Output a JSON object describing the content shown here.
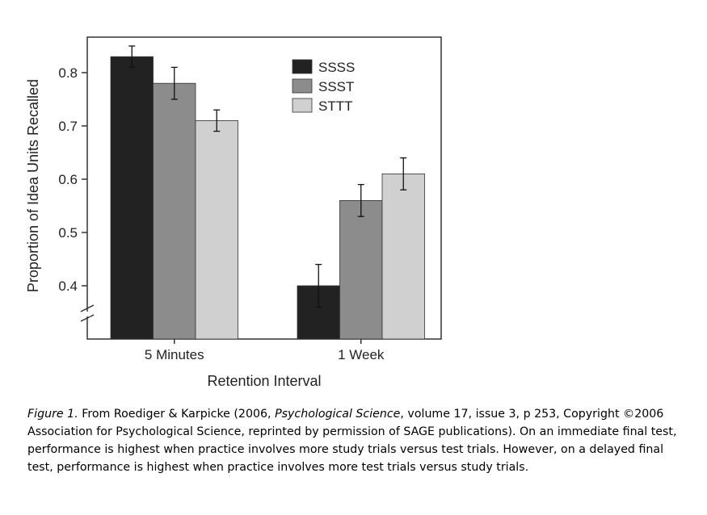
{
  "chart_data": {
    "type": "bar",
    "categories": [
      "5 Minutes",
      "1 Week"
    ],
    "series": [
      {
        "name": "SSSS",
        "color": "#222222",
        "values": [
          0.83,
          0.4
        ],
        "error": [
          0.02,
          0.04
        ]
      },
      {
        "name": "SSST",
        "color": "#8c8c8c",
        "values": [
          0.78,
          0.56
        ],
        "error": [
          0.03,
          0.03
        ]
      },
      {
        "name": "STTT",
        "color": "#d0d0d0",
        "values": [
          0.71,
          0.61
        ],
        "error": [
          0.02,
          0.03
        ]
      }
    ],
    "yticks": [
      "0.4",
      "0.5",
      "0.6",
      "0.7",
      "0.8"
    ],
    "ylim": [
      0.3,
      0.87
    ],
    "xlabel": "Retention Interval",
    "ylabel": "Proportion of Idea Units Recalled",
    "axis_break": true,
    "legend_position": "top-right"
  },
  "caption": {
    "figure_label": "Figure 1.",
    "part1": " From Roediger & Karpicke (2006, ",
    "journal": "Psychological Science",
    "part2": ", volume 17, issue 3, p 253, Copyright ©2006 Association for Psychological Science, reprinted by permission of SAGE publications). On an immediate final test, performance is highest when practice involves more study trials versus test trials. However, on a delayed final test, performance is highest when practice involves more test trials versus study trials."
  }
}
